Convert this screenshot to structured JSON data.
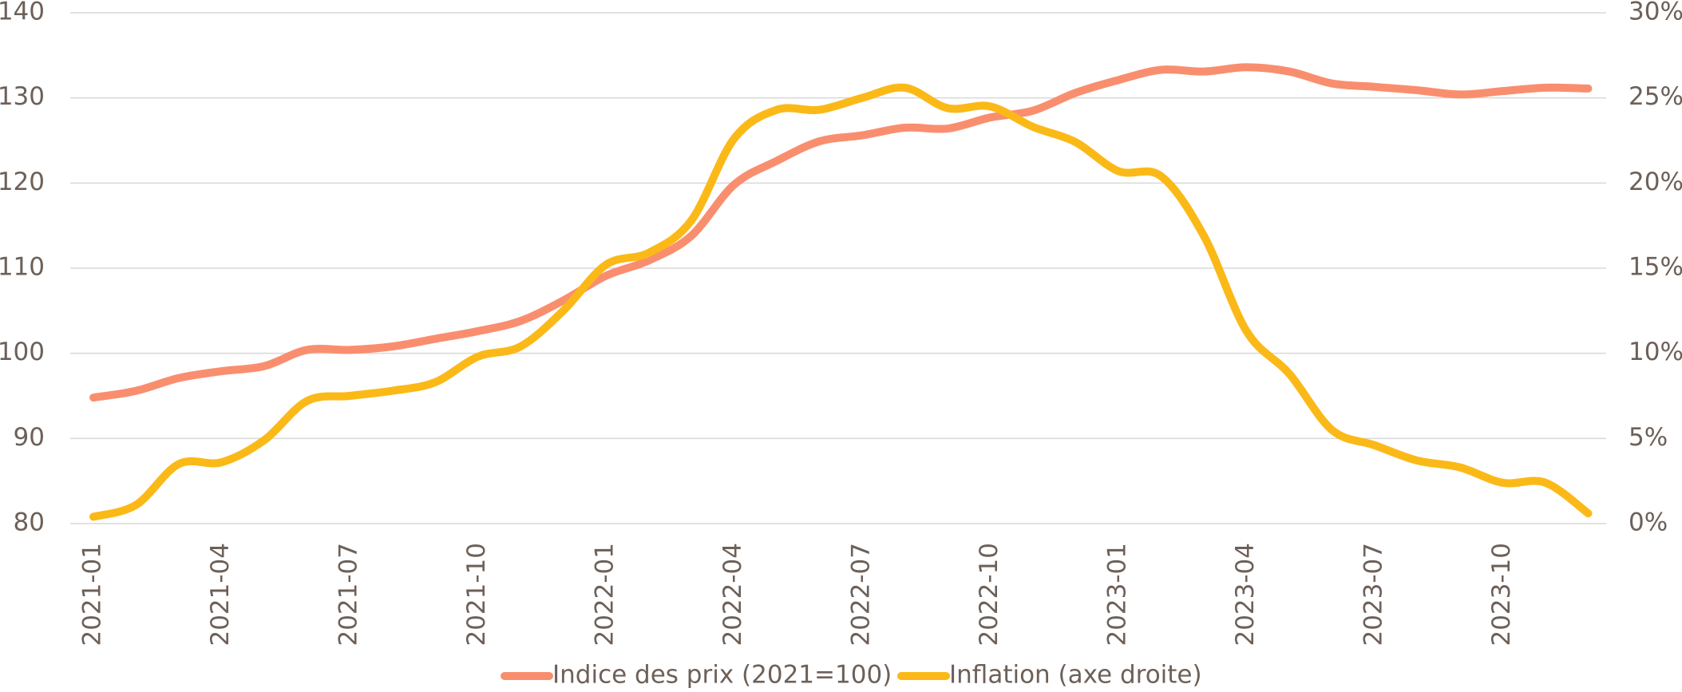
{
  "chart_data": {
    "type": "line",
    "categories": [
      "2021-01",
      null,
      null,
      "2021-04",
      null,
      null,
      "2021-07",
      null,
      null,
      "2021-10",
      null,
      null,
      "2022-01",
      null,
      null,
      "2022-04",
      null,
      null,
      "2022-07",
      null,
      null,
      "2022-10",
      null,
      null,
      "2023-01",
      null,
      null,
      "2023-04",
      null,
      null,
      "2023-07",
      null,
      null,
      "2023-10",
      null,
      null
    ],
    "series": [
      {
        "name": "Indice des prix (2021=100)",
        "color": "#f98e6f",
        "values": [
          94.8,
          95.6,
          97.1,
          97.9,
          98.5,
          100.4,
          100.4,
          100.8,
          101.7,
          102.6,
          103.8,
          106.2,
          109.1,
          110.9,
          113.8,
          119.8,
          122.6,
          124.9,
          125.6,
          126.5,
          126.4,
          127.7,
          128.5,
          130.6,
          132.1,
          133.3,
          133.1,
          133.6,
          133.1,
          131.7,
          131.3,
          130.9,
          130.4,
          130.8,
          131.2,
          131.1
        ]
      },
      {
        "name": "Inflation (axe droite)",
        "color": "#fbb918",
        "axis": "y2",
        "values": [
          0.4,
          1.1,
          3.5,
          3.6,
          4.9,
          7.2,
          7.5,
          7.8,
          8.3,
          9.8,
          10.4,
          12.5,
          15.2,
          15.9,
          17.8,
          22.6,
          24.3,
          24.3,
          25.0,
          25.6,
          24.4,
          24.5,
          23.3,
          22.4,
          20.7,
          20.4,
          16.9,
          11.3,
          8.8,
          5.5,
          4.6,
          3.7,
          3.3,
          2.4,
          2.4,
          0.6
        ]
      }
    ],
    "ylim": [
      80,
      140
    ],
    "yticks": [
      80,
      90,
      100,
      110,
      120,
      130,
      140
    ],
    "y2lim": [
      0,
      30
    ],
    "y2ticks": [
      {
        "value": 0,
        "label": "0%"
      },
      {
        "value": 5,
        "label": "5%"
      },
      {
        "value": 10,
        "label": "10%"
      },
      {
        "value": 15,
        "label": "15%"
      },
      {
        "value": 20,
        "label": "20%"
      },
      {
        "value": 25,
        "label": "25%"
      },
      {
        "value": 30,
        "label": "30%"
      }
    ],
    "grid": true,
    "legend": "bottom"
  }
}
